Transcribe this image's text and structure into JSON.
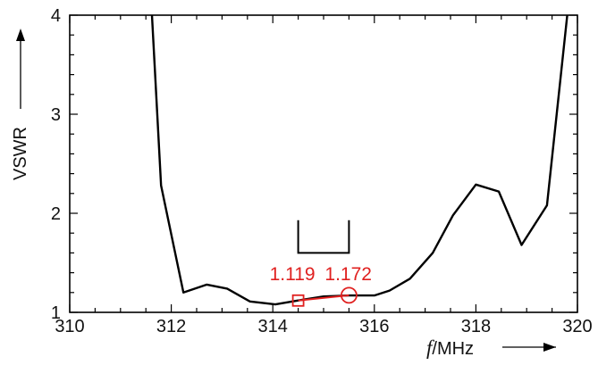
{
  "chart_data": {
    "type": "line",
    "title": "",
    "xlabel": {
      "italic": "f",
      "text": "/MHz"
    },
    "ylabel": "VSWR",
    "xlim": [
      310,
      320
    ],
    "ylim": [
      1,
      4
    ],
    "x_ticks": [
      "310",
      "312",
      "314",
      "316",
      "318",
      "320"
    ],
    "y_ticks": [
      "1",
      "2",
      "3",
      "4"
    ],
    "grid": false,
    "series": [
      {
        "color": "#000000",
        "points": [
          [
            311.62,
            4.0
          ],
          [
            311.8,
            2.28
          ],
          [
            312.24,
            1.2
          ],
          [
            312.7,
            1.28
          ],
          [
            313.1,
            1.24
          ],
          [
            313.55,
            1.11
          ],
          [
            314.05,
            1.08
          ],
          [
            314.5,
            1.12
          ],
          [
            315.0,
            1.16
          ],
          [
            315.5,
            1.17
          ],
          [
            316.0,
            1.17
          ],
          [
            316.3,
            1.22
          ],
          [
            316.7,
            1.34
          ],
          [
            317.15,
            1.6
          ],
          [
            317.55,
            1.98
          ],
          [
            318.0,
            2.29
          ],
          [
            318.45,
            2.22
          ],
          [
            318.9,
            1.68
          ],
          [
            319.4,
            2.08
          ],
          [
            319.8,
            4.0
          ]
        ]
      }
    ],
    "band_marker": {
      "x_start": 314.5,
      "x_end": 315.5,
      "y_bottom": 1.6,
      "y_top": 1.93,
      "color": "#000000"
    },
    "markers": [
      {
        "shape": "square",
        "x": 314.5,
        "y": 1.119,
        "label": "1.119",
        "color": "#e0201f"
      },
      {
        "shape": "circle",
        "x": 315.5,
        "y": 1.172,
        "label": "1.172",
        "color": "#e0201f"
      }
    ]
  }
}
